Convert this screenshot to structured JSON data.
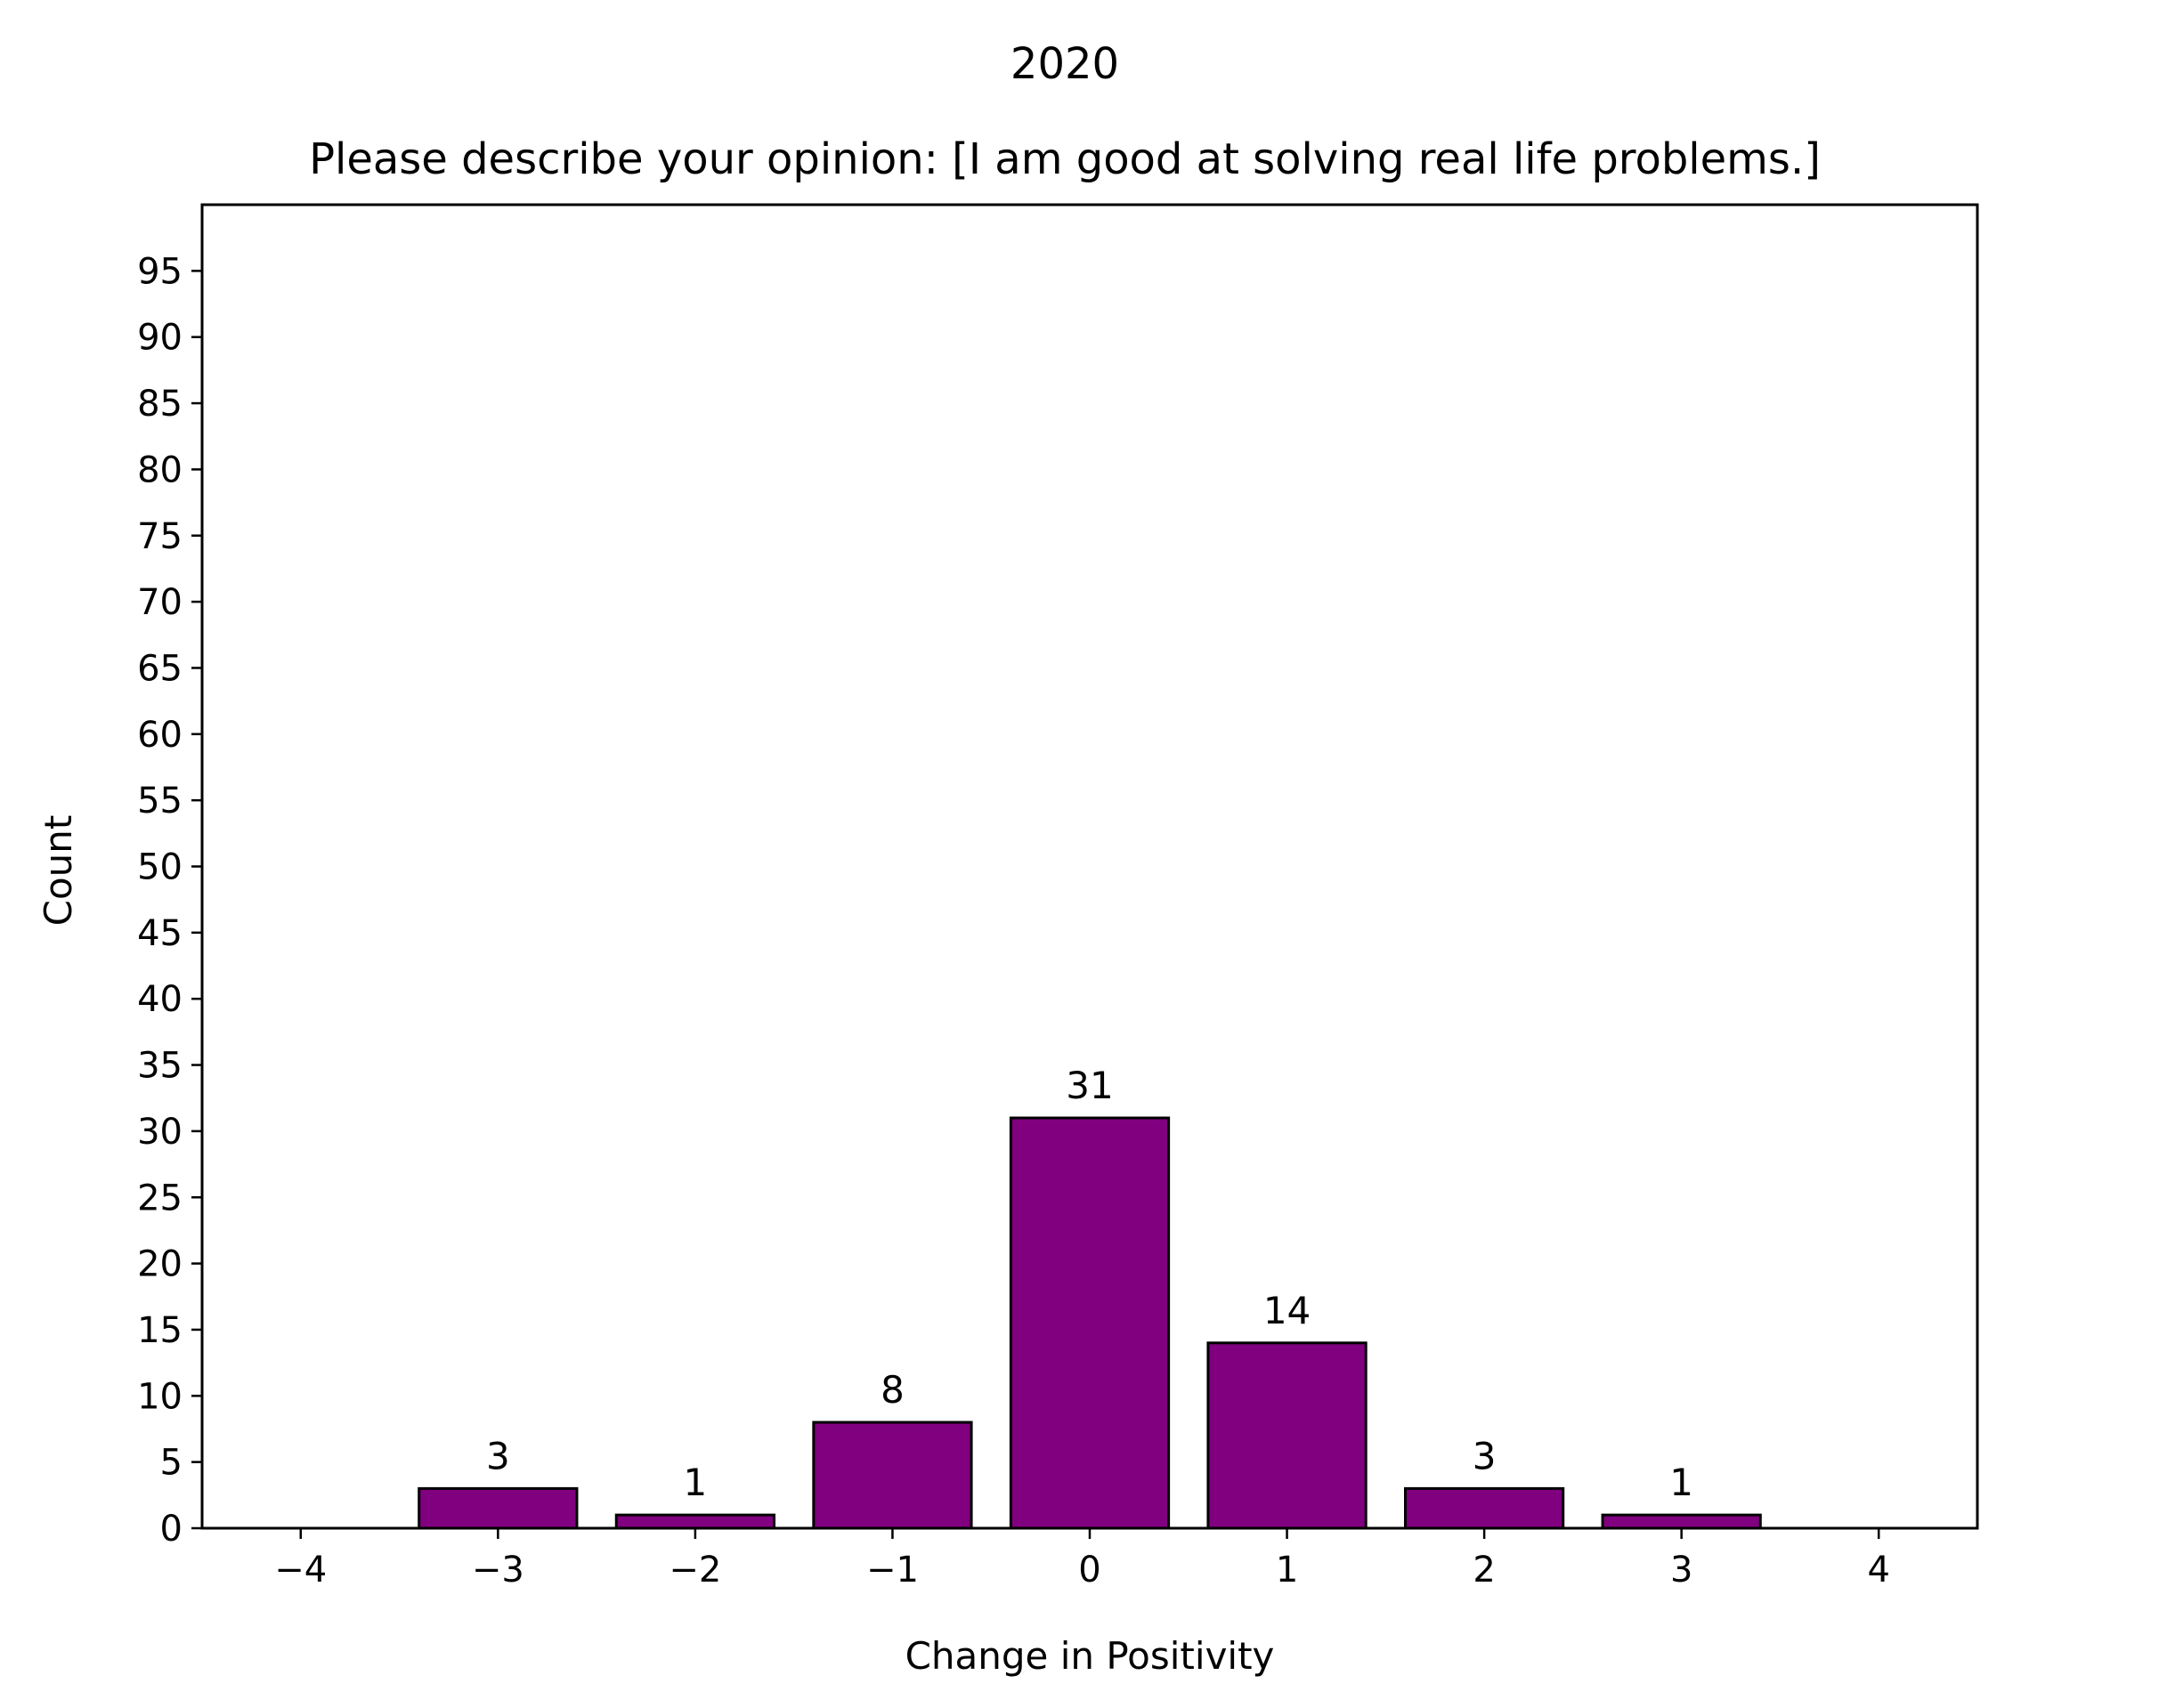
{
  "chart_data": {
    "type": "bar",
    "suptitle": "2020",
    "title": "Please describe your opinion: [I am good at solving real life problems.]",
    "xlabel": "Change in Positivity",
    "ylabel": "Count",
    "x": [
      -3,
      -2,
      -1,
      0,
      1,
      2,
      3
    ],
    "values": [
      3,
      1,
      8,
      31,
      14,
      3,
      1
    ],
    "data_labels": [
      "3",
      "1",
      "8",
      "31",
      "14",
      "3",
      "1"
    ],
    "xticks": [
      -4,
      -3,
      -2,
      -1,
      0,
      1,
      2,
      3,
      4
    ],
    "xtick_labels": [
      "−4",
      "−3",
      "−2",
      "−1",
      "0",
      "1",
      "2",
      "3",
      "4"
    ],
    "yticks": [
      0,
      5,
      10,
      15,
      20,
      25,
      30,
      35,
      40,
      45,
      50,
      55,
      60,
      65,
      70,
      75,
      80,
      85,
      90,
      95
    ],
    "xlim": [
      -4.5,
      4.5
    ],
    "ylim": [
      0,
      100
    ],
    "bar_color": "#800080",
    "edge_color": "#000000",
    "grid": false,
    "legend": "none"
  }
}
